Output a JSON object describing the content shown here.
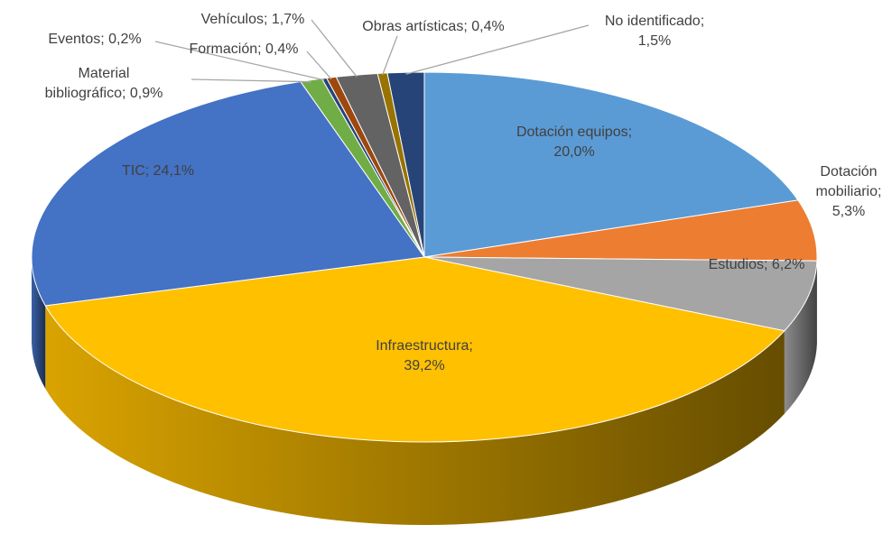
{
  "chart_data": {
    "type": "pie",
    "values": [
      20.0,
      5.3,
      6.2,
      39.2,
      24.1,
      0.9,
      0.2,
      0.4,
      1.7,
      0.4,
      1.5
    ],
    "value_labels": [
      "Dotación equipos;\n20,0%",
      "Dotación\nmobiliario;\n5,3%",
      "Estudios; 6,2%",
      "Infraestructura;\n39,2%",
      "TIC; 24,1%",
      "Material\nbibliográfico; 0,9%",
      "Eventos; 0,2%",
      "Formación; 0,4%",
      "Vehículos; 1,7%",
      "Obras artísticas; 0,4%",
      "No identificado;\n1,5%"
    ],
    "colors": [
      "#5b9bd5",
      "#ed7d31",
      "#a5a5a5",
      "#ffc000",
      "#4472c4",
      "#70ad47",
      "#264478",
      "#9e480e",
      "#636363",
      "#997300",
      "#264478"
    ]
  }
}
